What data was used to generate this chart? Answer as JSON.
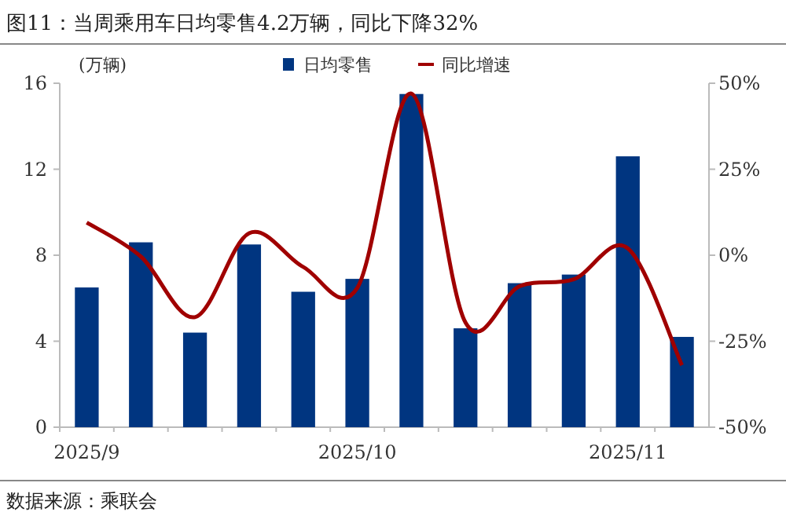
{
  "chart_data": {
    "type": "bar",
    "title": "图11：当周乘用车日均零售4.2万辆，同比下降32%",
    "ylabel": "(万辆)",
    "categories": [
      "2025/9",
      null,
      null,
      null,
      null,
      "2025/10",
      null,
      null,
      null,
      null,
      "2025/11",
      null
    ],
    "series": [
      {
        "name": "日均零售",
        "color": "#003580",
        "values": [
          6.5,
          8.6,
          4.4,
          8.5,
          6.3,
          6.9,
          15.5,
          4.6,
          6.7,
          7.1,
          12.6,
          4.2
        ]
      },
      {
        "name": "同比增速",
        "type": "line",
        "axis": "y2",
        "color": "#a00000",
        "values": [
          9.5,
          -0.4,
          -18,
          6.4,
          -3.4,
          -9.5,
          47,
          -19.6,
          -9,
          -7,
          2,
          -32
        ]
      }
    ],
    "ylim": [
      0,
      16
    ],
    "yticks": [
      0,
      4,
      8,
      12,
      16
    ],
    "y2lim": [
      -50,
      50
    ],
    "y2ticks": [
      {
        "value": -50,
        "label": "-50%"
      },
      {
        "value": -25,
        "label": "-25%"
      },
      {
        "value": 0,
        "label": "0%"
      },
      {
        "value": 25,
        "label": "25%"
      },
      {
        "value": 50,
        "label": "50%"
      }
    ],
    "legend": "top",
    "annotations": [
      "数据来源：乘联会"
    ]
  }
}
